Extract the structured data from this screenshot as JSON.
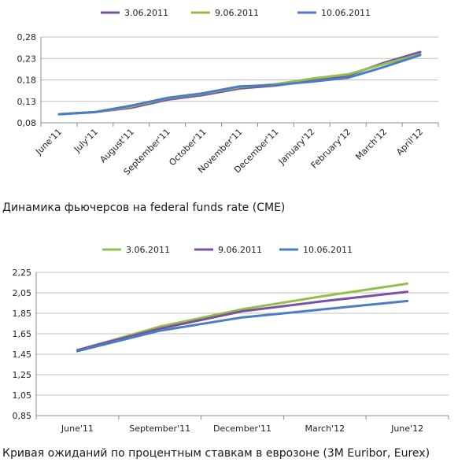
{
  "chart_data": [
    {
      "type": "line",
      "caption": "Динамика фьючерсов на federal funds rate (CME)",
      "categories": [
        "June'11",
        "July'11",
        "August'11",
        "September'11",
        "October'11",
        "November'11",
        "December'11",
        "January'12",
        "February'12",
        "March'12",
        "April'12"
      ],
      "yticks": [
        "0,08",
        "0,13",
        "0,18",
        "0,23",
        "0,28"
      ],
      "ylim": [
        0.08,
        0.28
      ],
      "grid": true,
      "legend_position": "top",
      "series": [
        {
          "name": "3.06.2011",
          "color": "#7b52a1",
          "values": [
            0.1,
            0.105,
            0.115,
            0.134,
            0.145,
            0.16,
            0.167,
            0.178,
            0.19,
            0.22,
            0.245
          ]
        },
        {
          "name": "9.06.2011",
          "color": "#92c04a",
          "values": [
            0.1,
            0.105,
            0.118,
            0.137,
            0.148,
            0.163,
            0.17,
            0.183,
            0.193,
            0.217,
            0.24
          ]
        },
        {
          "name": "10.06.2011",
          "color": "#4a7ec4",
          "values": [
            0.1,
            0.105,
            0.12,
            0.138,
            0.149,
            0.165,
            0.168,
            0.176,
            0.185,
            0.21,
            0.238
          ]
        }
      ]
    },
    {
      "type": "line",
      "caption": "Кривая ожиданий по процентным ставкам в еврозоне (3M Euribor, Eurex)",
      "categories": [
        "June'11",
        "September'11",
        "December'11",
        "March'12",
        "June'12"
      ],
      "yticks": [
        "0,85",
        "1,05",
        "1,25",
        "1,45",
        "1,65",
        "1,85",
        "2,05",
        "2,25"
      ],
      "ylim": [
        0.85,
        2.25
      ],
      "grid": true,
      "legend_position": "top",
      "series": [
        {
          "name": "3.06.2011",
          "color": "#92c04a",
          "values": [
            1.49,
            1.72,
            1.89,
            2.02,
            2.14
          ]
        },
        {
          "name": "9.06.2011",
          "color": "#7b52a1",
          "values": [
            1.49,
            1.7,
            1.87,
            1.97,
            2.06
          ]
        },
        {
          "name": "10.06.2011",
          "color": "#4a7ec4",
          "values": [
            1.48,
            1.68,
            1.81,
            1.89,
            1.97
          ]
        }
      ]
    }
  ]
}
